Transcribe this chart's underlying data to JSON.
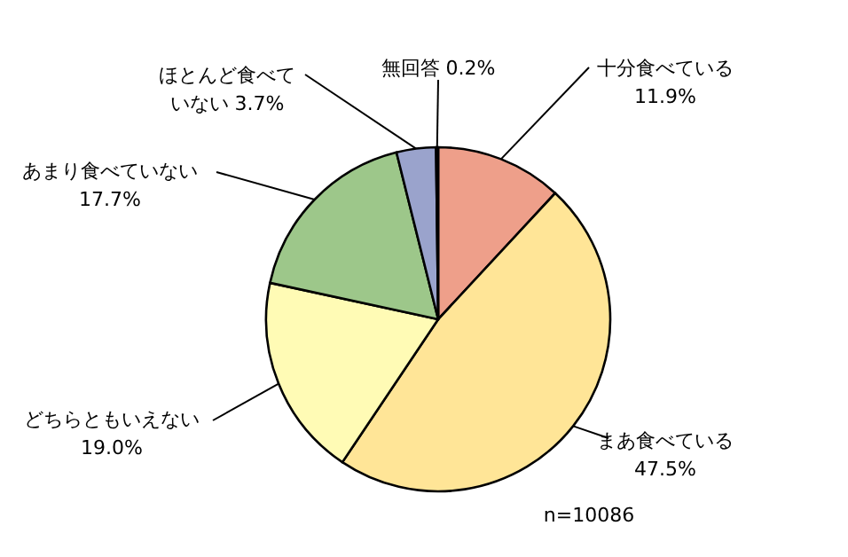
{
  "chart_data": {
    "type": "pie",
    "categories": [
      "十分食べている",
      "まあ食べている",
      "どちらともいえない",
      "あまり食べていない",
      "ほとんど食べていない",
      "無回答"
    ],
    "values": [
      11.9,
      47.5,
      19.0,
      17.7,
      3.7,
      0.2
    ],
    "colors": [
      "#ee9f8a",
      "#ffe597",
      "#fffbb5",
      "#9dc78a",
      "#9aa3cc",
      "#000000"
    ],
    "value_labels": [
      "11.9%",
      "47.5%",
      "19.0%",
      "17.7%",
      "3.7%",
      "0.2%"
    ],
    "annotations": [
      "n=10086"
    ]
  }
}
